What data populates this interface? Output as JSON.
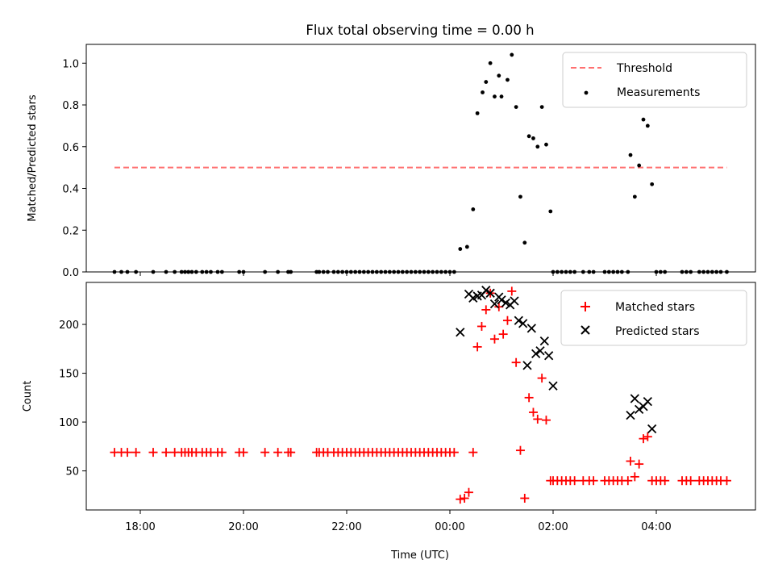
{
  "title": "Flux total observing time = 0.00 h",
  "colors": {
    "threshold": "#ff7070",
    "measurements": "#000000",
    "matched": "#ff0000",
    "predicted": "#000000",
    "legend_border": "#cccccc"
  },
  "chart_data": [
    {
      "type": "scatter",
      "ylabel": "Matched/Predicted stars",
      "ylim": [
        0,
        1.09
      ],
      "yticks": [
        "0.0",
        "0.2",
        "0.4",
        "0.6",
        "0.8",
        "1.0"
      ],
      "legend_position": "top-right",
      "threshold": {
        "name": "Threshold",
        "value": 0.5,
        "x_start": "17:30",
        "x_end": "05:22"
      },
      "series": [
        {
          "name": "Measurements",
          "points": [
            [
              "17:30",
              0
            ],
            [
              "17:38",
              0
            ],
            [
              "17:45",
              0
            ],
            [
              "17:55",
              0
            ],
            [
              "18:15",
              0
            ],
            [
              "18:30",
              0
            ],
            [
              "18:40",
              0
            ],
            [
              "18:48",
              0
            ],
            [
              "18:52",
              0
            ],
            [
              "18:56",
              0
            ],
            [
              "19:00",
              0
            ],
            [
              "19:05",
              0
            ],
            [
              "19:12",
              0
            ],
            [
              "19:17",
              0
            ],
            [
              "19:22",
              0
            ],
            [
              "19:30",
              0
            ],
            [
              "19:35",
              0
            ],
            [
              "19:55",
              0
            ],
            [
              "20:00",
              0
            ],
            [
              "20:25",
              0
            ],
            [
              "20:40",
              0
            ],
            [
              "20:52",
              0
            ],
            [
              "20:55",
              0
            ],
            [
              "21:25",
              0
            ],
            [
              "21:28",
              0
            ],
            [
              "21:33",
              0
            ],
            [
              "21:38",
              0
            ],
            [
              "21:45",
              0
            ],
            [
              "21:50",
              0
            ],
            [
              "21:55",
              0
            ],
            [
              "22:00",
              0
            ],
            [
              "22:05",
              0
            ],
            [
              "22:10",
              0
            ],
            [
              "22:15",
              0
            ],
            [
              "22:20",
              0
            ],
            [
              "22:25",
              0
            ],
            [
              "22:30",
              0
            ],
            [
              "22:35",
              0
            ],
            [
              "22:40",
              0
            ],
            [
              "22:45",
              0
            ],
            [
              "22:50",
              0
            ],
            [
              "22:55",
              0
            ],
            [
              "23:00",
              0
            ],
            [
              "23:05",
              0
            ],
            [
              "23:10",
              0
            ],
            [
              "23:15",
              0
            ],
            [
              "23:20",
              0
            ],
            [
              "23:25",
              0
            ],
            [
              "23:30",
              0
            ],
            [
              "23:35",
              0
            ],
            [
              "23:40",
              0
            ],
            [
              "23:45",
              0
            ],
            [
              "23:50",
              0
            ],
            [
              "23:55",
              0
            ],
            [
              "00:00",
              0
            ],
            [
              "00:05",
              0
            ],
            [
              "00:12",
              0.11
            ],
            [
              "00:20",
              0.12
            ],
            [
              "00:27",
              0.3
            ],
            [
              "00:32",
              0.76
            ],
            [
              "00:38",
              0.86
            ],
            [
              "00:42",
              0.91
            ],
            [
              "00:47",
              1.0
            ],
            [
              "00:52",
              0.84
            ],
            [
              "00:57",
              0.94
            ],
            [
              "01:00",
              0.84
            ],
            [
              "01:07",
              0.92
            ],
            [
              "01:12",
              1.04
            ],
            [
              "01:17",
              0.79
            ],
            [
              "01:22",
              0.36
            ],
            [
              "01:27",
              0.14
            ],
            [
              "01:32",
              0.65
            ],
            [
              "01:37",
              0.64
            ],
            [
              "01:42",
              0.6
            ],
            [
              "01:47",
              0.79
            ],
            [
              "01:52",
              0.61
            ],
            [
              "01:57",
              0.29
            ],
            [
              "02:00",
              0
            ],
            [
              "02:05",
              0
            ],
            [
              "02:10",
              0
            ],
            [
              "02:15",
              0
            ],
            [
              "02:20",
              0
            ],
            [
              "02:25",
              0
            ],
            [
              "02:35",
              0
            ],
            [
              "02:42",
              0
            ],
            [
              "02:47",
              0
            ],
            [
              "03:00",
              0
            ],
            [
              "03:05",
              0
            ],
            [
              "03:10",
              0
            ],
            [
              "03:15",
              0
            ],
            [
              "03:20",
              0
            ],
            [
              "03:27",
              0
            ],
            [
              "03:30",
              0.56
            ],
            [
              "03:35",
              0.36
            ],
            [
              "03:40",
              0.51
            ],
            [
              "03:45",
              0.73
            ],
            [
              "03:50",
              0.7
            ],
            [
              "03:55",
              0.42
            ],
            [
              "04:00",
              0
            ],
            [
              "04:05",
              0
            ],
            [
              "04:10",
              0
            ],
            [
              "04:30",
              0
            ],
            [
              "04:35",
              0
            ],
            [
              "04:40",
              0
            ],
            [
              "04:50",
              0
            ],
            [
              "04:55",
              0
            ],
            [
              "05:00",
              0
            ],
            [
              "05:05",
              0
            ],
            [
              "05:10",
              0
            ],
            [
              "05:15",
              0
            ],
            [
              "05:22",
              0
            ]
          ]
        }
      ]
    },
    {
      "type": "scatter",
      "ylabel": "Count",
      "xlabel": "Time (UTC)",
      "ylim": [
        10,
        243
      ],
      "yticks": [
        "50",
        "100",
        "150",
        "200"
      ],
      "xticks": [
        "18:00",
        "20:00",
        "22:00",
        "00:00",
        "02:00",
        "04:00"
      ],
      "legend_position": "top-right",
      "series": [
        {
          "name": "Matched stars",
          "marker": "plus",
          "points": [
            [
              "17:30",
              69
            ],
            [
              "17:38",
              69
            ],
            [
              "17:45",
              69
            ],
            [
              "17:55",
              69
            ],
            [
              "18:15",
              69
            ],
            [
              "18:30",
              69
            ],
            [
              "18:40",
              69
            ],
            [
              "18:48",
              69
            ],
            [
              "18:52",
              69
            ],
            [
              "18:56",
              69
            ],
            [
              "19:00",
              69
            ],
            [
              "19:05",
              69
            ],
            [
              "19:12",
              69
            ],
            [
              "19:17",
              69
            ],
            [
              "19:22",
              69
            ],
            [
              "19:30",
              69
            ],
            [
              "19:35",
              69
            ],
            [
              "19:55",
              69
            ],
            [
              "20:00",
              69
            ],
            [
              "20:25",
              69
            ],
            [
              "20:40",
              69
            ],
            [
              "20:52",
              69
            ],
            [
              "20:55",
              69
            ],
            [
              "21:25",
              69
            ],
            [
              "21:28",
              69
            ],
            [
              "21:33",
              69
            ],
            [
              "21:38",
              69
            ],
            [
              "21:45",
              69
            ],
            [
              "21:50",
              69
            ],
            [
              "21:55",
              69
            ],
            [
              "22:00",
              69
            ],
            [
              "22:05",
              69
            ],
            [
              "22:10",
              69
            ],
            [
              "22:15",
              69
            ],
            [
              "22:20",
              69
            ],
            [
              "22:25",
              69
            ],
            [
              "22:30",
              69
            ],
            [
              "22:35",
              69
            ],
            [
              "22:40",
              69
            ],
            [
              "22:45",
              69
            ],
            [
              "22:50",
              69
            ],
            [
              "22:55",
              69
            ],
            [
              "23:00",
              69
            ],
            [
              "23:05",
              69
            ],
            [
              "23:10",
              69
            ],
            [
              "23:15",
              69
            ],
            [
              "23:20",
              69
            ],
            [
              "23:25",
              69
            ],
            [
              "23:30",
              69
            ],
            [
              "23:35",
              69
            ],
            [
              "23:40",
              69
            ],
            [
              "23:45",
              69
            ],
            [
              "23:50",
              69
            ],
            [
              "23:55",
              69
            ],
            [
              "00:00",
              69
            ],
            [
              "00:05",
              69
            ],
            [
              "00:12",
              21
            ],
            [
              "00:17",
              22
            ],
            [
              "00:22",
              28
            ],
            [
              "00:27",
              69
            ],
            [
              "00:32",
              177
            ],
            [
              "00:37",
              198
            ],
            [
              "00:42",
              215
            ],
            [
              "00:47",
              232
            ],
            [
              "00:52",
              185
            ],
            [
              "00:57",
              218
            ],
            [
              "01:02",
              190
            ],
            [
              "01:07",
              204
            ],
            [
              "01:12",
              234
            ],
            [
              "01:17",
              161
            ],
            [
              "01:22",
              71
            ],
            [
              "01:27",
              22
            ],
            [
              "01:32",
              125
            ],
            [
              "01:37",
              110
            ],
            [
              "01:42",
              103
            ],
            [
              "01:47",
              145
            ],
            [
              "01:52",
              102
            ],
            [
              "01:57",
              40
            ],
            [
              "02:00",
              40
            ],
            [
              "02:05",
              40
            ],
            [
              "02:10",
              40
            ],
            [
              "02:15",
              40
            ],
            [
              "02:20",
              40
            ],
            [
              "02:25",
              40
            ],
            [
              "02:35",
              40
            ],
            [
              "02:42",
              40
            ],
            [
              "02:47",
              40
            ],
            [
              "03:00",
              40
            ],
            [
              "03:05",
              40
            ],
            [
              "03:10",
              40
            ],
            [
              "03:15",
              40
            ],
            [
              "03:20",
              40
            ],
            [
              "03:27",
              40
            ],
            [
              "03:30",
              60
            ],
            [
              "03:35",
              44
            ],
            [
              "03:40",
              57
            ],
            [
              "03:45",
              83
            ],
            [
              "03:50",
              85
            ],
            [
              "03:55",
              40
            ],
            [
              "04:00",
              40
            ],
            [
              "04:05",
              40
            ],
            [
              "04:10",
              40
            ],
            [
              "04:30",
              40
            ],
            [
              "04:35",
              40
            ],
            [
              "04:40",
              40
            ],
            [
              "04:50",
              40
            ],
            [
              "04:55",
              40
            ],
            [
              "05:00",
              40
            ],
            [
              "05:05",
              40
            ],
            [
              "05:10",
              40
            ],
            [
              "05:15",
              40
            ],
            [
              "05:22",
              40
            ]
          ]
        },
        {
          "name": "Predicted stars",
          "marker": "x",
          "points": [
            [
              "00:12",
              192
            ],
            [
              "00:22",
              231
            ],
            [
              "00:27",
              227
            ],
            [
              "00:32",
              229
            ],
            [
              "00:37",
              230
            ],
            [
              "00:42",
              235
            ],
            [
              "00:47",
              232
            ],
            [
              "00:52",
              221
            ],
            [
              "00:57",
              228
            ],
            [
              "01:00",
              225
            ],
            [
              "01:05",
              222
            ],
            [
              "01:10",
              220
            ],
            [
              "01:15",
              224
            ],
            [
              "01:20",
              204
            ],
            [
              "01:25",
              201
            ],
            [
              "01:30",
              158
            ],
            [
              "01:35",
              196
            ],
            [
              "01:40",
              170
            ],
            [
              "01:45",
              173
            ],
            [
              "01:50",
              183
            ],
            [
              "01:55",
              168
            ],
            [
              "02:00",
              137
            ],
            [
              "03:30",
              107
            ],
            [
              "03:35",
              124
            ],
            [
              "03:40",
              113
            ],
            [
              "03:45",
              116
            ],
            [
              "03:50",
              121
            ],
            [
              "03:55",
              93
            ]
          ]
        }
      ]
    }
  ]
}
